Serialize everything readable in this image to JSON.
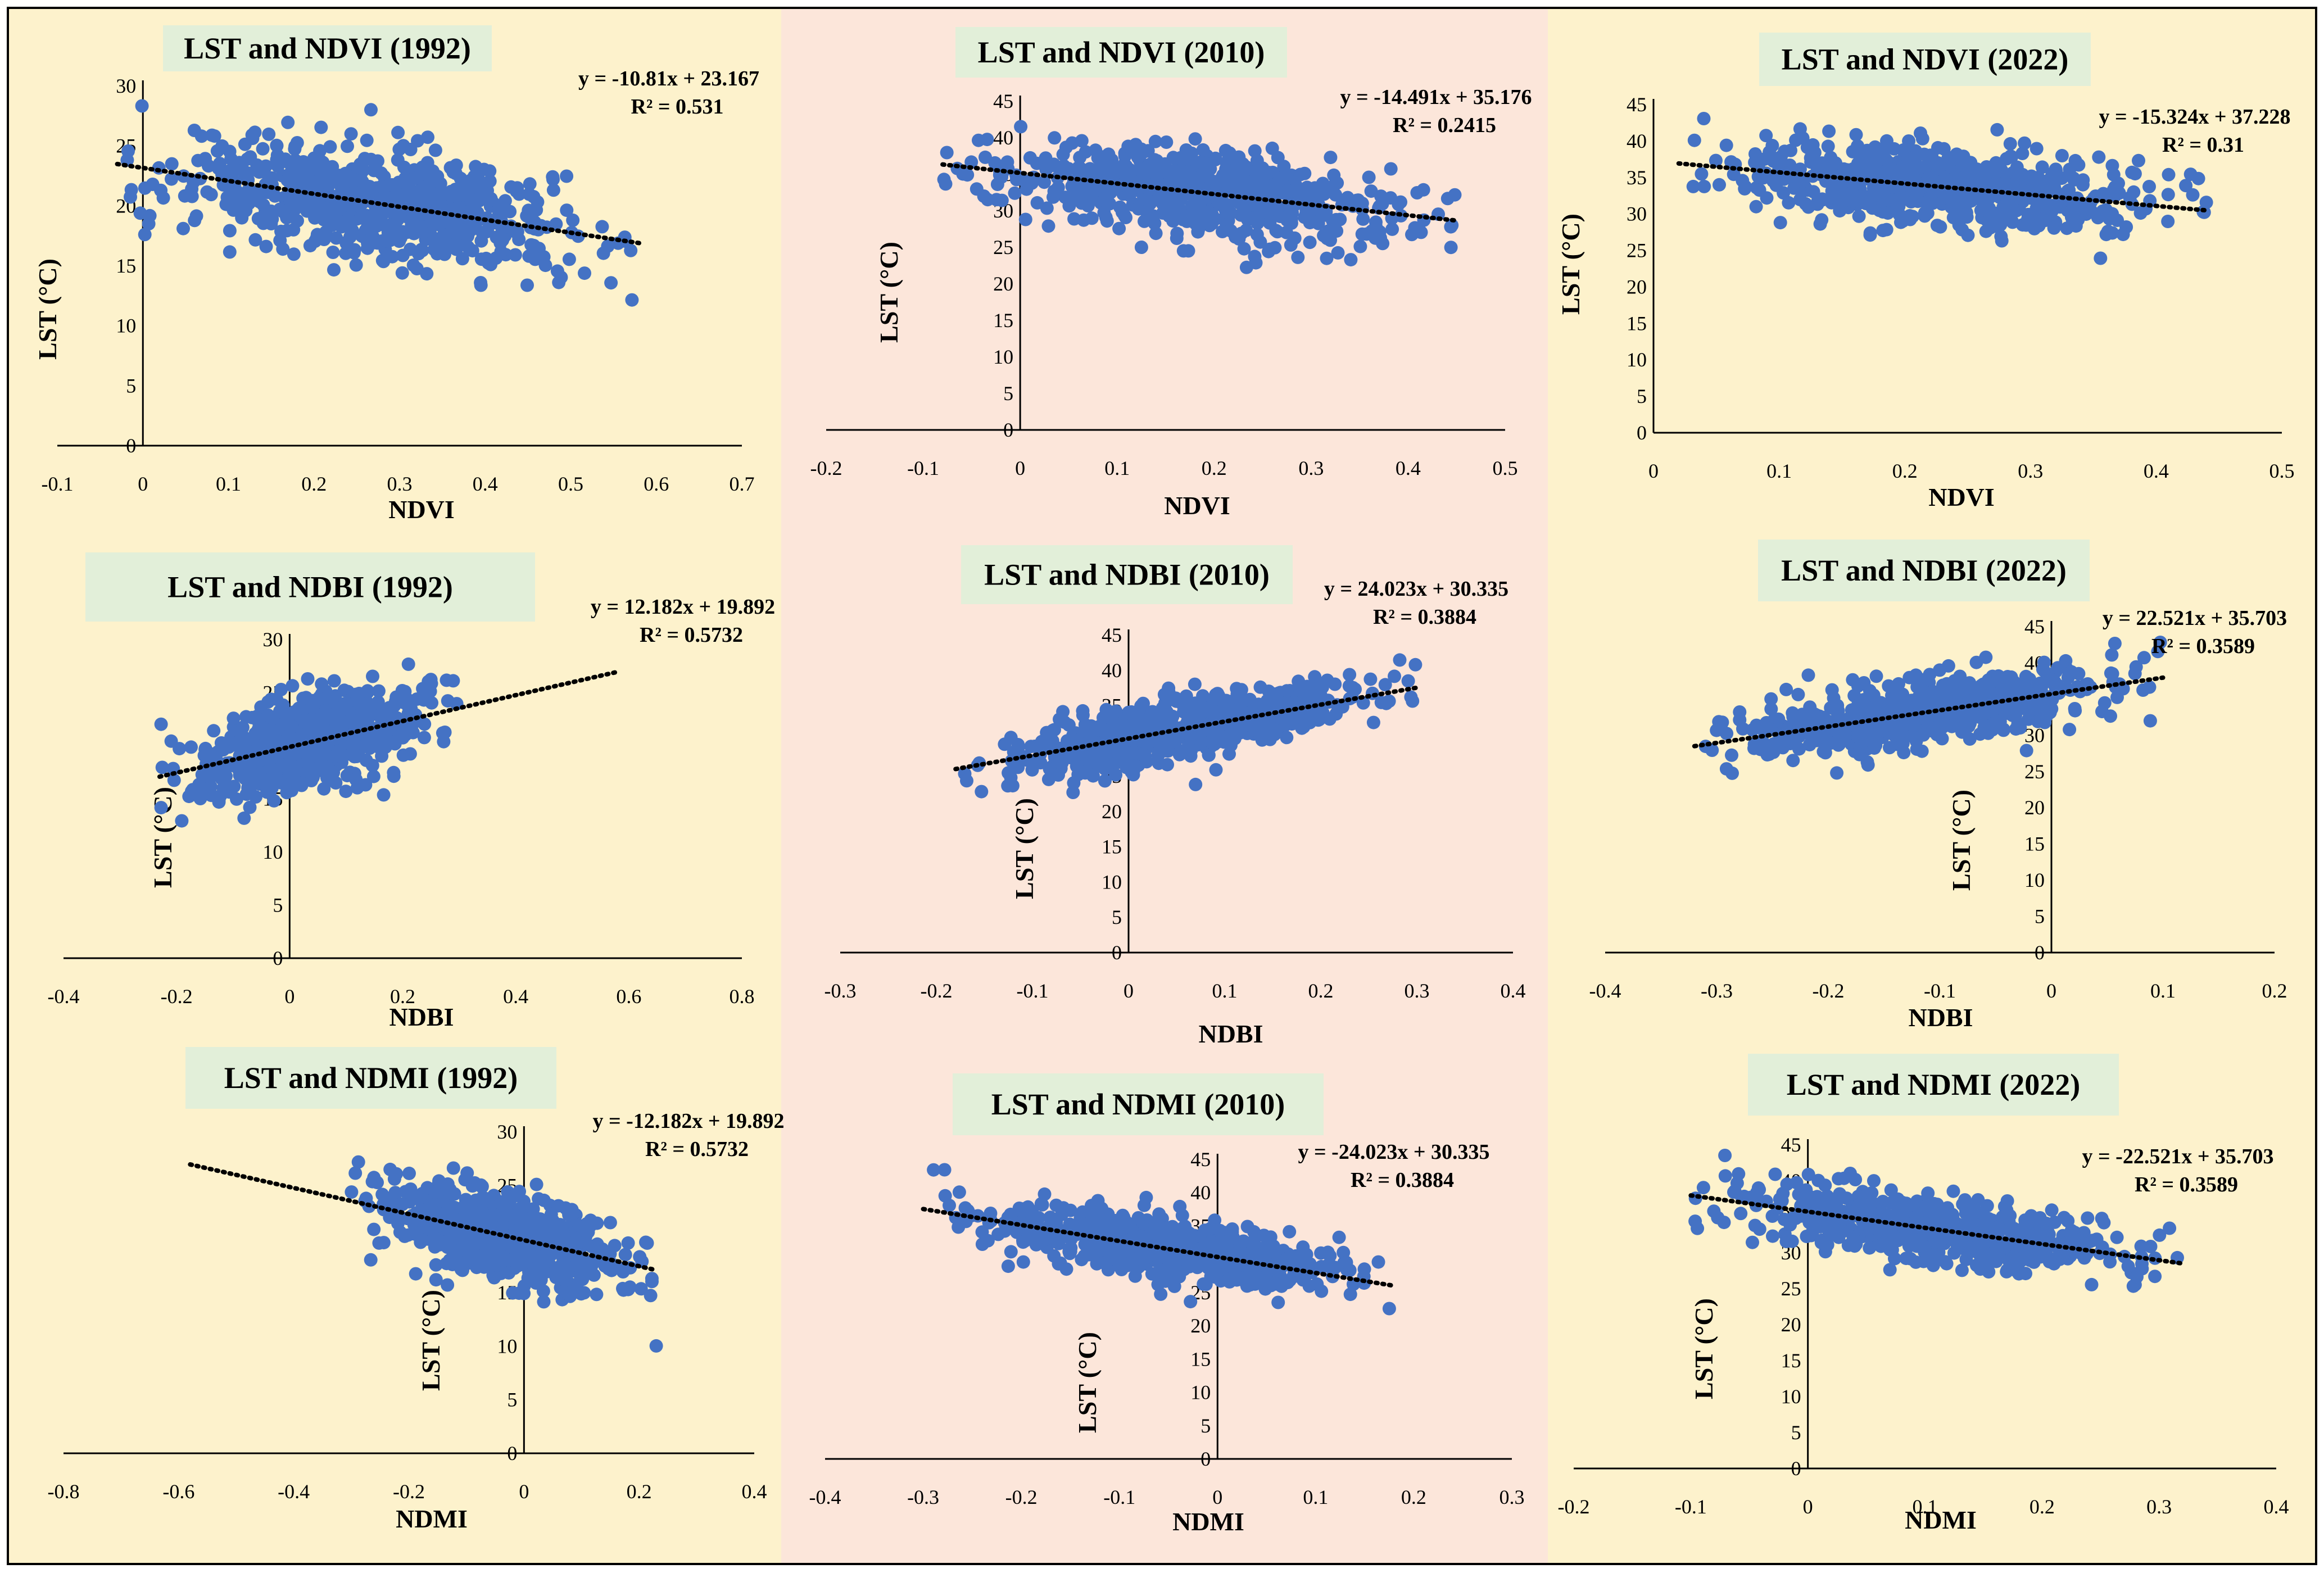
{
  "colors": {
    "panel_cream": "#fdf2cc",
    "panel_pink": "#fce6da",
    "title_box": "#e2efd9",
    "point": "#4472c4",
    "trend": "#000000",
    "border": "#000000"
  },
  "chart_data": [
    {
      "id": "ndvi-1992",
      "type": "scatter",
      "title": "LST and NDVI (1992)",
      "xlabel": "NDVI",
      "ylabel": "LST (°C)",
      "xlim": [
        -0.1,
        0.7
      ],
      "ylim": [
        0,
        30
      ],
      "xticks": [
        "-0.1",
        "0",
        "0.1",
        "0.2",
        "0.3",
        "0.4",
        "0.5",
        "0.6",
        "0.7"
      ],
      "yticks": [
        "0",
        "5",
        "10",
        "15",
        "20",
        "25",
        "30"
      ],
      "trendline": {
        "slope": -10.81,
        "intercept": 23.167,
        "x_range": [
          -0.03,
          0.58
        ]
      },
      "equation": "y = -10.81x + 23.167",
      "r2": "R² = 0.531",
      "points": {
        "x_range": [
          -0.03,
          0.58
        ],
        "y_spread": 2.4,
        "count": 700,
        "seed": 11
      }
    },
    {
      "id": "ndvi-2010",
      "type": "scatter",
      "title": "LST and NDVI (2010)",
      "xlabel": "NDVI",
      "ylabel": "LST (°C)",
      "xlim": [
        -0.2,
        0.5
      ],
      "ylim": [
        0,
        45
      ],
      "xticks": [
        "-0.2",
        "-0.1",
        "0",
        "0.1",
        "0.2",
        "0.3",
        "0.4",
        "0.5"
      ],
      "yticks": [
        "0",
        "5",
        "10",
        "15",
        "20",
        "25",
        "30",
        "35",
        "40",
        "45"
      ],
      "trendline": {
        "slope": -14.491,
        "intercept": 35.176,
        "x_range": [
          -0.08,
          0.45
        ]
      },
      "equation": "y = -14.491x + 35.176",
      "r2": "R² = 0.2415",
      "points": {
        "x_range": [
          -0.08,
          0.45
        ],
        "y_spread": 2.8,
        "count": 650,
        "seed": 23
      }
    },
    {
      "id": "ndvi-2022",
      "type": "scatter",
      "title": "LST and NDVI (2022)",
      "xlabel": "NDVI",
      "ylabel": "LST (°C)",
      "xlim": [
        0,
        0.5
      ],
      "ylim": [
        0,
        45
      ],
      "xticks": [
        "0",
        "0.1",
        "0.2",
        "0.3",
        "0.4",
        "0.5"
      ],
      "yticks": [
        "0",
        "5",
        "10",
        "15",
        "20",
        "25",
        "30",
        "35",
        "40",
        "45"
      ],
      "trendline": {
        "slope": -15.324,
        "intercept": 37.228,
        "x_range": [
          0.02,
          0.44
        ]
      },
      "equation": "y = -15.324x + 37.228",
      "r2": "R² = 0.31",
      "points": {
        "x_range": [
          0.02,
          0.44
        ],
        "y_spread": 2.8,
        "count": 650,
        "seed": 37
      }
    },
    {
      "id": "ndbi-1992",
      "type": "scatter",
      "title": "LST and NDBI (1992)",
      "xlabel": "NDBI",
      "ylabel": "LST (°C)",
      "xlim": [
        -0.4,
        0.8
      ],
      "ylim": [
        0,
        30
      ],
      "xticks": [
        "-0.4",
        "-0.2",
        "0",
        "0.2",
        "0.4",
        "0.6",
        "0.8"
      ],
      "yticks": [
        "0",
        "5",
        "10",
        "15",
        "20",
        "25",
        "30"
      ],
      "trendline": {
        "slope": 12.182,
        "intercept": 19.892,
        "x_range": [
          -0.23,
          0.58
        ]
      },
      "equation": "y = 12.182x + 19.892",
      "r2": "R² = 0.5732",
      "points": {
        "x_range": [
          -0.23,
          0.3
        ],
        "y_spread": 2.0,
        "count": 700,
        "seed": 41
      }
    },
    {
      "id": "ndbi-2010",
      "type": "scatter",
      "title": "LST and NDBI (2010)",
      "xlabel": "NDBI",
      "ylabel": "LST (°C)",
      "xlim": [
        -0.3,
        0.4
      ],
      "ylim": [
        0,
        45
      ],
      "xticks": [
        "-0.3",
        "-0.2",
        "-0.1",
        "0",
        "0.1",
        "0.2",
        "0.3",
        "0.4"
      ],
      "yticks": [
        "0",
        "5",
        "10",
        "15",
        "20",
        "25",
        "30",
        "35",
        "40",
        "45"
      ],
      "trendline": {
        "slope": 24.023,
        "intercept": 30.335,
        "x_range": [
          -0.18,
          0.3
        ]
      },
      "equation": "y = 24.023x + 30.335",
      "r2": "R² = 0.3884",
      "points": {
        "x_range": [
          -0.18,
          0.3
        ],
        "y_spread": 2.2,
        "count": 650,
        "seed": 53
      }
    },
    {
      "id": "ndbi-2022",
      "type": "scatter",
      "title": "LST and NDBI (2022)",
      "xlabel": "NDBI",
      "ylabel": "LST (°C)",
      "xlim": [
        -0.4,
        0.2
      ],
      "ylim": [
        0,
        45
      ],
      "xticks": [
        "-0.4",
        "-0.3",
        "-0.2",
        "-0.1",
        "0",
        "0.1",
        "0.2"
      ],
      "yticks": [
        "0",
        "5",
        "10",
        "15",
        "20",
        "25",
        "30",
        "35",
        "40",
        "45"
      ],
      "trendline": {
        "slope": 22.521,
        "intercept": 35.703,
        "x_range": [
          -0.32,
          0.1
        ]
      },
      "equation": "y = 22.521x + 35.703",
      "r2": "R² = 0.3589",
      "points": {
        "x_range": [
          -0.32,
          0.1
        ],
        "y_spread": 2.2,
        "count": 650,
        "seed": 67
      }
    },
    {
      "id": "ndmi-1992",
      "type": "scatter",
      "title": "LST and NDMI (1992)",
      "xlabel": "NDMI",
      "ylabel": "LST (°C)",
      "xlim": [
        -0.8,
        0.4
      ],
      "ylim": [
        0,
        30
      ],
      "xticks": [
        "-0.8",
        "-0.6",
        "-0.4",
        "-0.2",
        "0",
        "0.2",
        "0.4"
      ],
      "yticks": [
        "0",
        "5",
        "10",
        "15",
        "20",
        "25",
        "30"
      ],
      "trendline": {
        "slope": -12.182,
        "intercept": 19.892,
        "x_range": [
          -0.58,
          0.23
        ]
      },
      "equation": "y = -12.182x + 19.892",
      "r2": "R² = 0.5732",
      "points": {
        "x_range": [
          -0.3,
          0.23
        ],
        "y_spread": 2.0,
        "count": 700,
        "seed": 71
      }
    },
    {
      "id": "ndmi-2010",
      "type": "scatter",
      "title": "LST and NDMI (2010)",
      "xlabel": "NDMI",
      "ylabel": "LST (°C)",
      "xlim": [
        -0.4,
        0.3
      ],
      "ylim": [
        0,
        45
      ],
      "xticks": [
        "-0.4",
        "-0.3",
        "-0.2",
        "-0.1",
        "0",
        "0.1",
        "0.2",
        "0.3"
      ],
      "yticks": [
        "0",
        "5",
        "10",
        "15",
        "20",
        "25",
        "30",
        "35",
        "40",
        "45"
      ],
      "trendline": {
        "slope": -24.023,
        "intercept": 30.335,
        "x_range": [
          -0.3,
          0.18
        ]
      },
      "equation": "y = -24.023x + 30.335",
      "r2": "R² = 0.3884",
      "points": {
        "x_range": [
          -0.3,
          0.18
        ],
        "y_spread": 2.2,
        "count": 650,
        "seed": 83
      }
    },
    {
      "id": "ndmi-2022",
      "type": "scatter",
      "title": "LST and NDMI (2022)",
      "xlabel": "NDMI",
      "ylabel": "LST (°C)",
      "xlim": [
        -0.2,
        0.4
      ],
      "ylim": [
        0,
        45
      ],
      "xticks": [
        "-0.2",
        "-0.1",
        "0",
        "0.1",
        "0.2",
        "0.3",
        "0.4"
      ],
      "yticks": [
        "0",
        "5",
        "10",
        "15",
        "20",
        "25",
        "30",
        "35",
        "40",
        "45"
      ],
      "trendline": {
        "slope": -22.521,
        "intercept": 35.703,
        "x_range": [
          -0.1,
          0.32
        ]
      },
      "equation": "y = -22.521x + 35.703",
      "r2": "R² = 0.3589",
      "points": {
        "x_range": [
          -0.1,
          0.32
        ],
        "y_spread": 2.2,
        "count": 650,
        "seed": 97
      }
    }
  ]
}
